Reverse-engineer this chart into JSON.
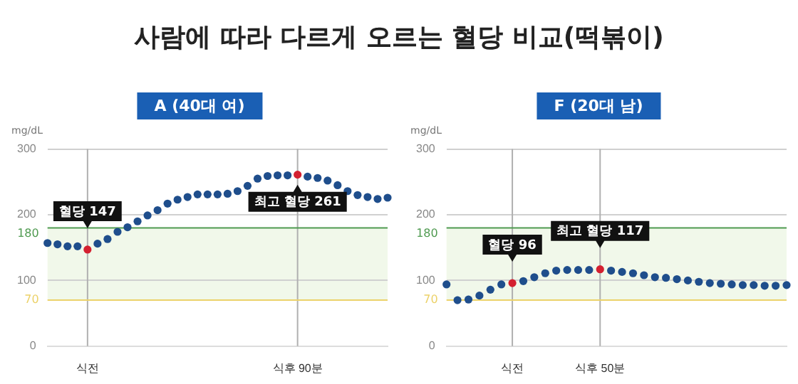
{
  "chart_data": [
    {
      "type": "scatter",
      "title": "사람에 따라 다르게 오르는 혈당 비교(떡볶이)",
      "subtitle": "A (40대 여)",
      "ylabel": "mg/dL",
      "categories": [
        null,
        null,
        null,
        null,
        "식전",
        null,
        null,
        null,
        null,
        null,
        null,
        null,
        null,
        null,
        null,
        null,
        null,
        null,
        null,
        null,
        null,
        null,
        null,
        null,
        null,
        "식후 90분",
        null,
        null,
        null,
        null,
        null,
        null,
        null,
        null,
        null
      ],
      "series": [
        {
          "color": "#1f4e8c",
          "colors": [
            null,
            null,
            null,
            null,
            "#d42030",
            null,
            null,
            null,
            null,
            null,
            null,
            null,
            null,
            null,
            null,
            null,
            null,
            null,
            null,
            null,
            null,
            null,
            null,
            null,
            null,
            "#d42030",
            null,
            null,
            null,
            null,
            null,
            null,
            null,
            null,
            null
          ],
          "values": [
            157,
            155,
            152,
            152,
            147,
            156,
            163,
            174,
            181,
            190,
            199,
            207,
            217,
            223,
            227,
            231,
            231,
            231,
            232,
            236,
            244,
            255,
            259,
            260,
            260,
            261,
            258,
            256,
            252,
            245,
            236,
            230,
            227,
            224,
            226
          ]
        }
      ],
      "ylim": [
        0,
        300
      ],
      "yticks": [
        0,
        100,
        200,
        300
      ],
      "grid": "y",
      "marker": "circle",
      "legend": false,
      "ref_lines": [
        {
          "axis": "x",
          "value": "식전",
          "color": "#b0b0b0"
        },
        {
          "axis": "x",
          "value": "식후 90분",
          "color": "#b0b0b0"
        },
        {
          "axis": "y",
          "value": 180,
          "label": "180",
          "color": "#4f9a50"
        },
        {
          "axis": "y",
          "value": 70,
          "label": "70",
          "color": "#ecd26a"
        }
      ],
      "bands": [
        {
          "axis": "y",
          "from": 70,
          "to": 180,
          "color": "#f1f8ea"
        }
      ],
      "annotations": [
        {
          "text": "혈당 147",
          "x": "식전",
          "y": 147
        },
        {
          "text": "최고 혈당 261",
          "x": "식후 90분",
          "y": 261
        }
      ]
    },
    {
      "type": "scatter",
      "subtitle": "F (20대 남)",
      "ylabel": "mg/dL",
      "categories": [
        null,
        null,
        null,
        null,
        null,
        null,
        "식전",
        null,
        null,
        null,
        null,
        null,
        null,
        null,
        "식후 50분",
        null,
        null,
        null,
        null,
        null,
        null,
        null,
        null,
        null,
        null,
        null,
        null,
        null,
        null,
        null,
        null,
        null
      ],
      "series": [
        {
          "color": "#1f4e8c",
          "colors": [
            null,
            null,
            null,
            null,
            null,
            null,
            "#d42030",
            null,
            null,
            null,
            null,
            null,
            null,
            null,
            "#d42030",
            null,
            null,
            null,
            null,
            null,
            null,
            null,
            null,
            null,
            null,
            null,
            null,
            null,
            null,
            null,
            null,
            null
          ],
          "values": [
            94,
            70,
            71,
            77,
            86,
            94,
            96,
            99,
            105,
            111,
            115,
            116,
            116,
            116,
            117,
            115,
            113,
            111,
            108,
            105,
            104,
            102,
            100,
            98,
            96,
            95,
            94,
            93,
            93,
            92,
            92,
            93
          ]
        }
      ],
      "ylim": [
        0,
        300
      ],
      "yticks": [
        0,
        100,
        200,
        300
      ],
      "grid": "y",
      "marker": "circle",
      "legend": false,
      "ref_lines": [
        {
          "axis": "x",
          "value": "식전",
          "color": "#b0b0b0"
        },
        {
          "axis": "x",
          "value": "식후 50분",
          "color": "#b0b0b0"
        },
        {
          "axis": "y",
          "value": 180,
          "label": "180",
          "color": "#4f9a50"
        },
        {
          "axis": "y",
          "value": 70,
          "label": "70",
          "color": "#ecd26a"
        }
      ],
      "bands": [
        {
          "axis": "y",
          "from": 70,
          "to": 180,
          "color": "#f1f8ea"
        }
      ],
      "annotations": [
        {
          "text": "혈당 96",
          "x": "식전",
          "y": 96
        },
        {
          "text": "최고 혈당 117",
          "x": "식후 50분",
          "y": 117
        }
      ]
    }
  ]
}
